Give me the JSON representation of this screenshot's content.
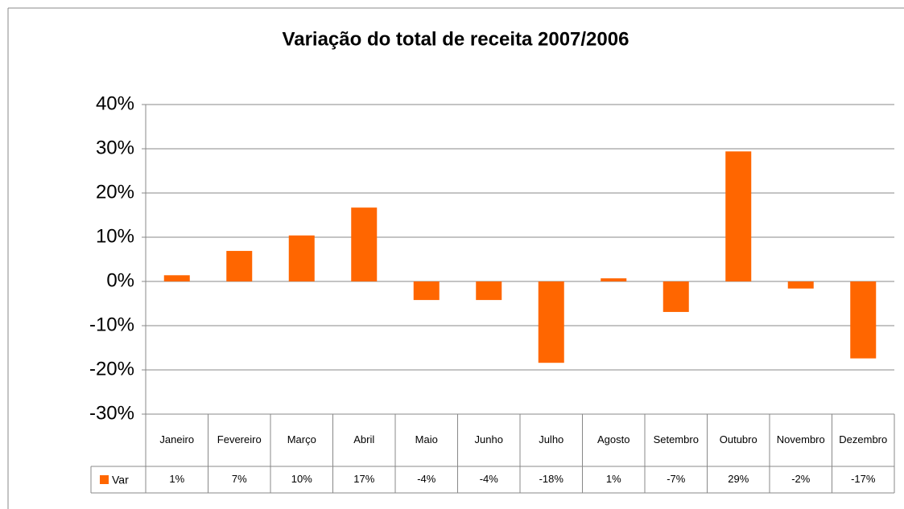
{
  "chart_data": {
    "type": "bar",
    "title": "Variação do total de receita 2007/2006",
    "categories": [
      "Janeiro",
      "Fevereiro",
      "Março",
      "Abril",
      "Maio",
      "Junho",
      "Julho",
      "Agosto",
      "Setembro",
      "Outubro",
      "Novembro",
      "Dezembro"
    ],
    "series": [
      {
        "name": "Var",
        "color": "#ff6600",
        "values": [
          1.4,
          6.9,
          10.4,
          16.7,
          -4.2,
          -4.2,
          -18.4,
          0.7,
          -6.9,
          29.4,
          -1.6,
          -17.4
        ],
        "value_labels": [
          "1%",
          "7%",
          "10%",
          "17%",
          "-4%",
          "-4%",
          "-18%",
          "1%",
          "-7%",
          "29%",
          "-2%",
          "-17%"
        ]
      }
    ],
    "ylim": [
      -30,
      40
    ],
    "yticks": [
      {
        "value": -30,
        "label": "-30%"
      },
      {
        "value": -20,
        "label": "-20%"
      },
      {
        "value": -10,
        "label": "-10%"
      },
      {
        "value": 0,
        "label": "0%"
      },
      {
        "value": 10,
        "label": "10%"
      },
      {
        "value": 20,
        "label": "20%"
      },
      {
        "value": 30,
        "label": "30%"
      },
      {
        "value": 40,
        "label": "40%"
      }
    ],
    "grid": true
  }
}
